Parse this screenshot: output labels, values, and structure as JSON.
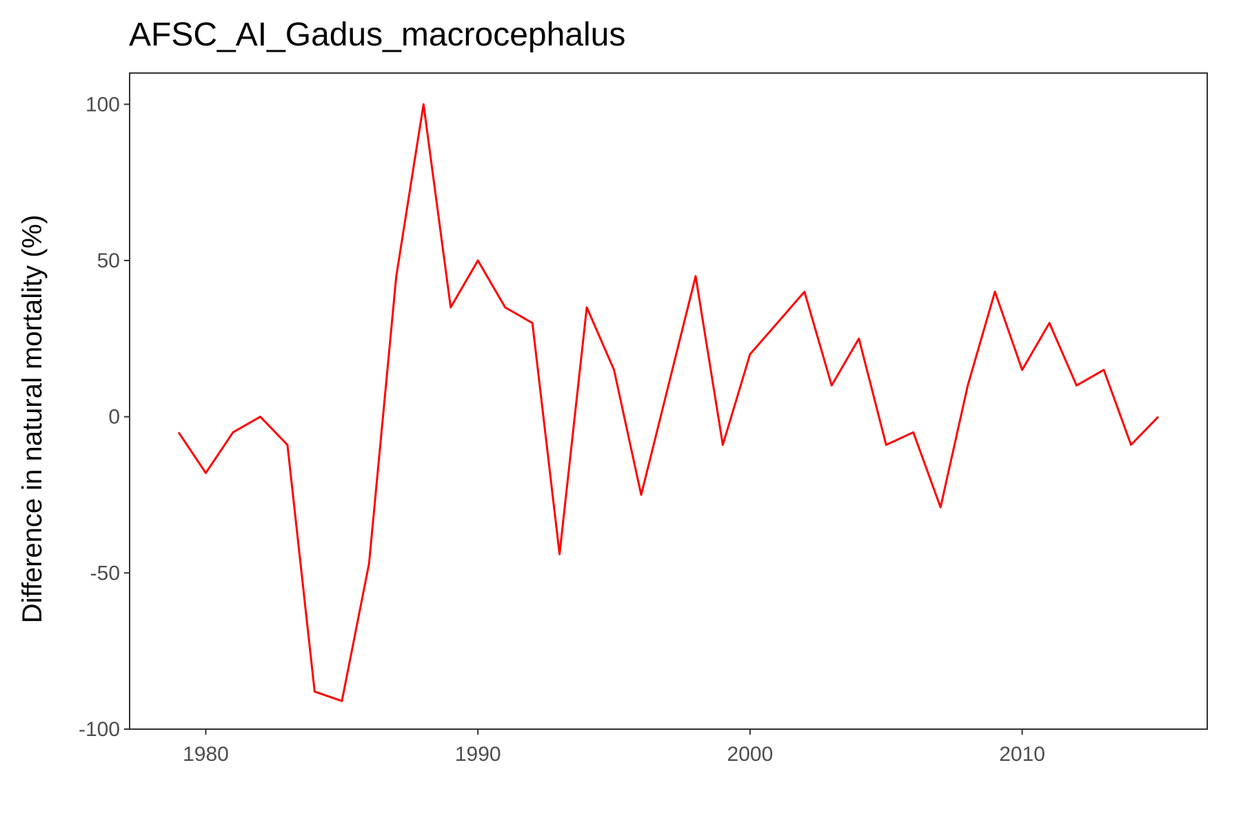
{
  "chart_data": {
    "type": "line",
    "title": "AFSC_AI_Gadus_macrocephalus",
    "xlabel": "",
    "ylabel": "Difference in natural mortality (%)",
    "xlim": [
      1977.2,
      2016.8
    ],
    "ylim": [
      -100,
      110
    ],
    "x_ticks": [
      1980,
      1990,
      2000,
      2010
    ],
    "y_ticks": [
      -100,
      -50,
      0,
      50,
      100
    ],
    "x_tick_labels": [
      "1980",
      "1990",
      "2000",
      "2010"
    ],
    "y_tick_labels": [
      "-100",
      "-50",
      "0",
      "50",
      "100"
    ],
    "grid": false,
    "series": [
      {
        "color": "#ff0000",
        "x": [
          1979,
          1980,
          1981,
          1982,
          1983,
          1984,
          1985,
          1986,
          1987,
          1988,
          1989,
          1990,
          1991,
          1992,
          1993,
          1994,
          1995,
          1996,
          1997,
          1998,
          1999,
          2000,
          2001,
          2002,
          2003,
          2004,
          2005,
          2006,
          2007,
          2008,
          2009,
          2010,
          2011,
          2012,
          2013,
          2014,
          2015
        ],
        "values": [
          -5,
          -18,
          -5,
          0,
          -9,
          -88,
          -91,
          -47,
          45,
          100,
          35,
          50,
          35,
          30,
          -44,
          35,
          15,
          -25,
          10,
          45,
          -9,
          20,
          30,
          40,
          10,
          25,
          -9,
          -5,
          -29,
          10,
          40,
          15,
          30,
          10,
          15,
          -9,
          0
        ]
      }
    ]
  }
}
